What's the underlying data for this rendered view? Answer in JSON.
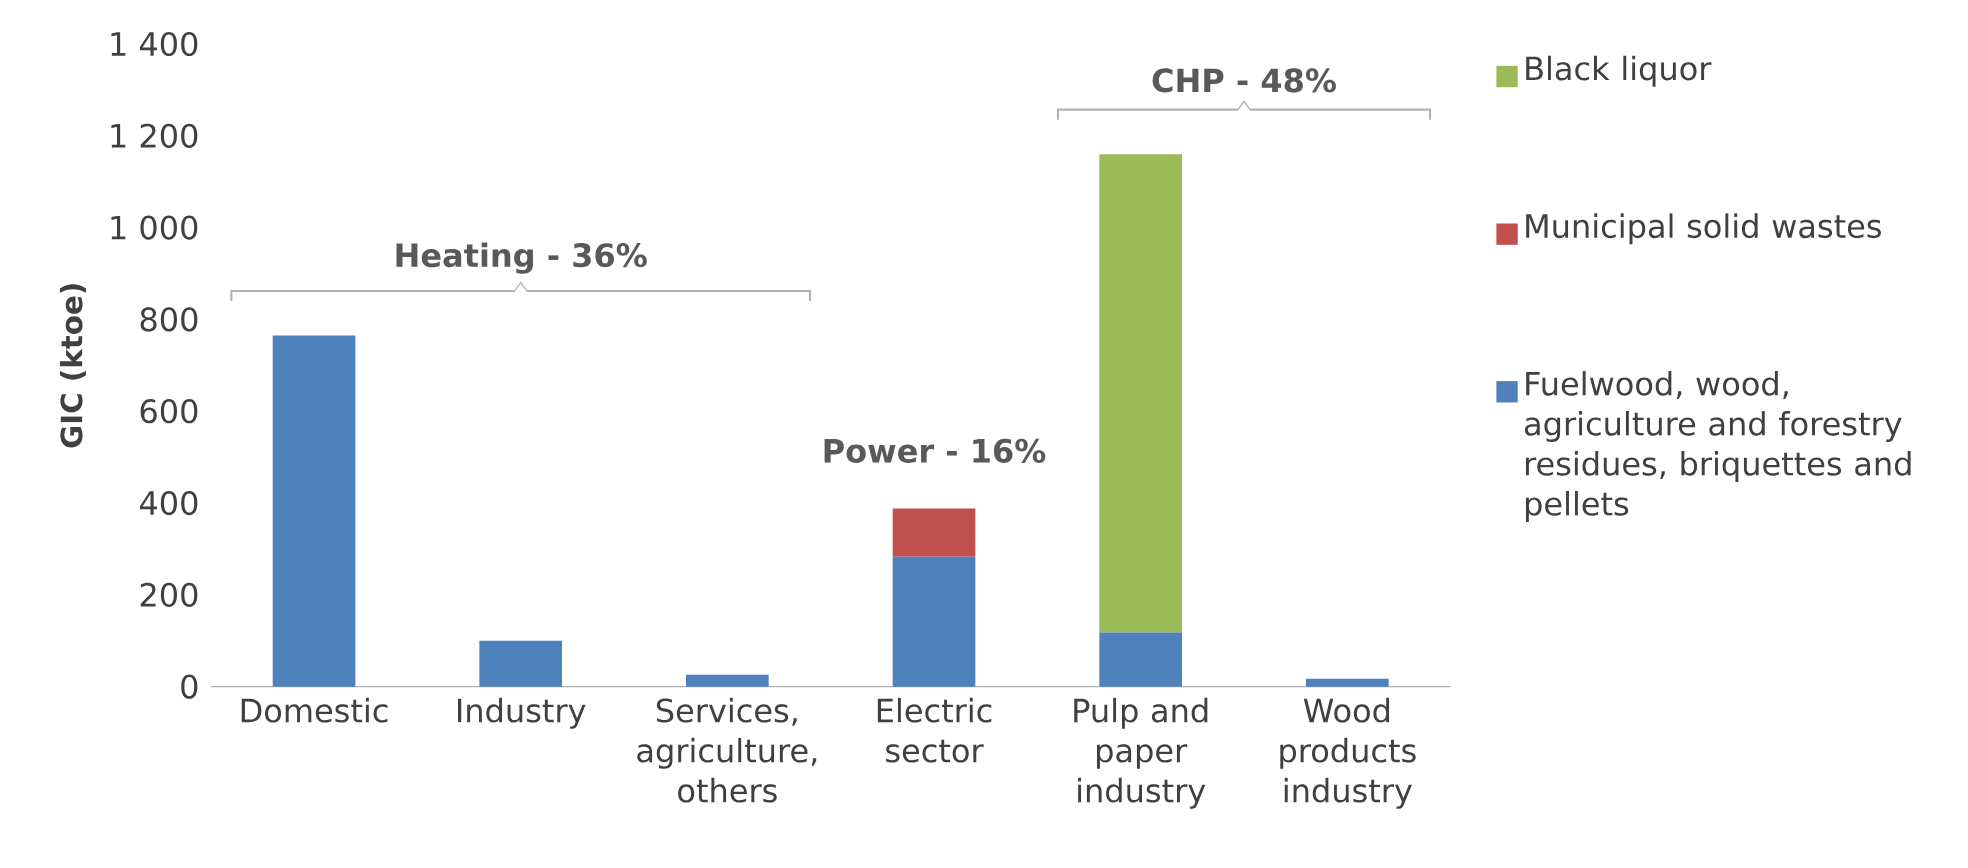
{
  "chart_data": {
    "type": "bar",
    "stacked": true,
    "ylabel": "GIC (ktoe)",
    "categories": [
      "Domestic",
      "Industry",
      "Services, agriculture, others",
      "Electric sector",
      "Pulp and paper industry",
      "Wood products industry"
    ],
    "series": [
      {
        "name": "Fuelwood, wood, agriculture and forestry residues, briquettes and pellets",
        "color": "#4f81bd",
        "values": [
          765,
          100,
          26,
          283,
          118,
          17
        ]
      },
      {
        "name": "Municipal solid wastes",
        "color": "#c0504d",
        "values": [
          0,
          0,
          0,
          105,
          0,
          0
        ]
      },
      {
        "name": "Black liquor",
        "color": "#9bbb59",
        "values": [
          0,
          0,
          0,
          0,
          1042,
          0
        ]
      }
    ],
    "ylim": [
      0,
      1400
    ],
    "yticks": [
      0,
      200,
      400,
      600,
      800,
      {
        "value": 1000,
        "label": "1 000"
      },
      {
        "value": 1200,
        "label": "1 200"
      },
      {
        "value": 1400,
        "label": "1 400"
      }
    ],
    "annotations": [
      "Heating - 36%",
      "Power - 16%",
      "CHP - 48%"
    ],
    "legend": "right",
    "grid": false
  }
}
